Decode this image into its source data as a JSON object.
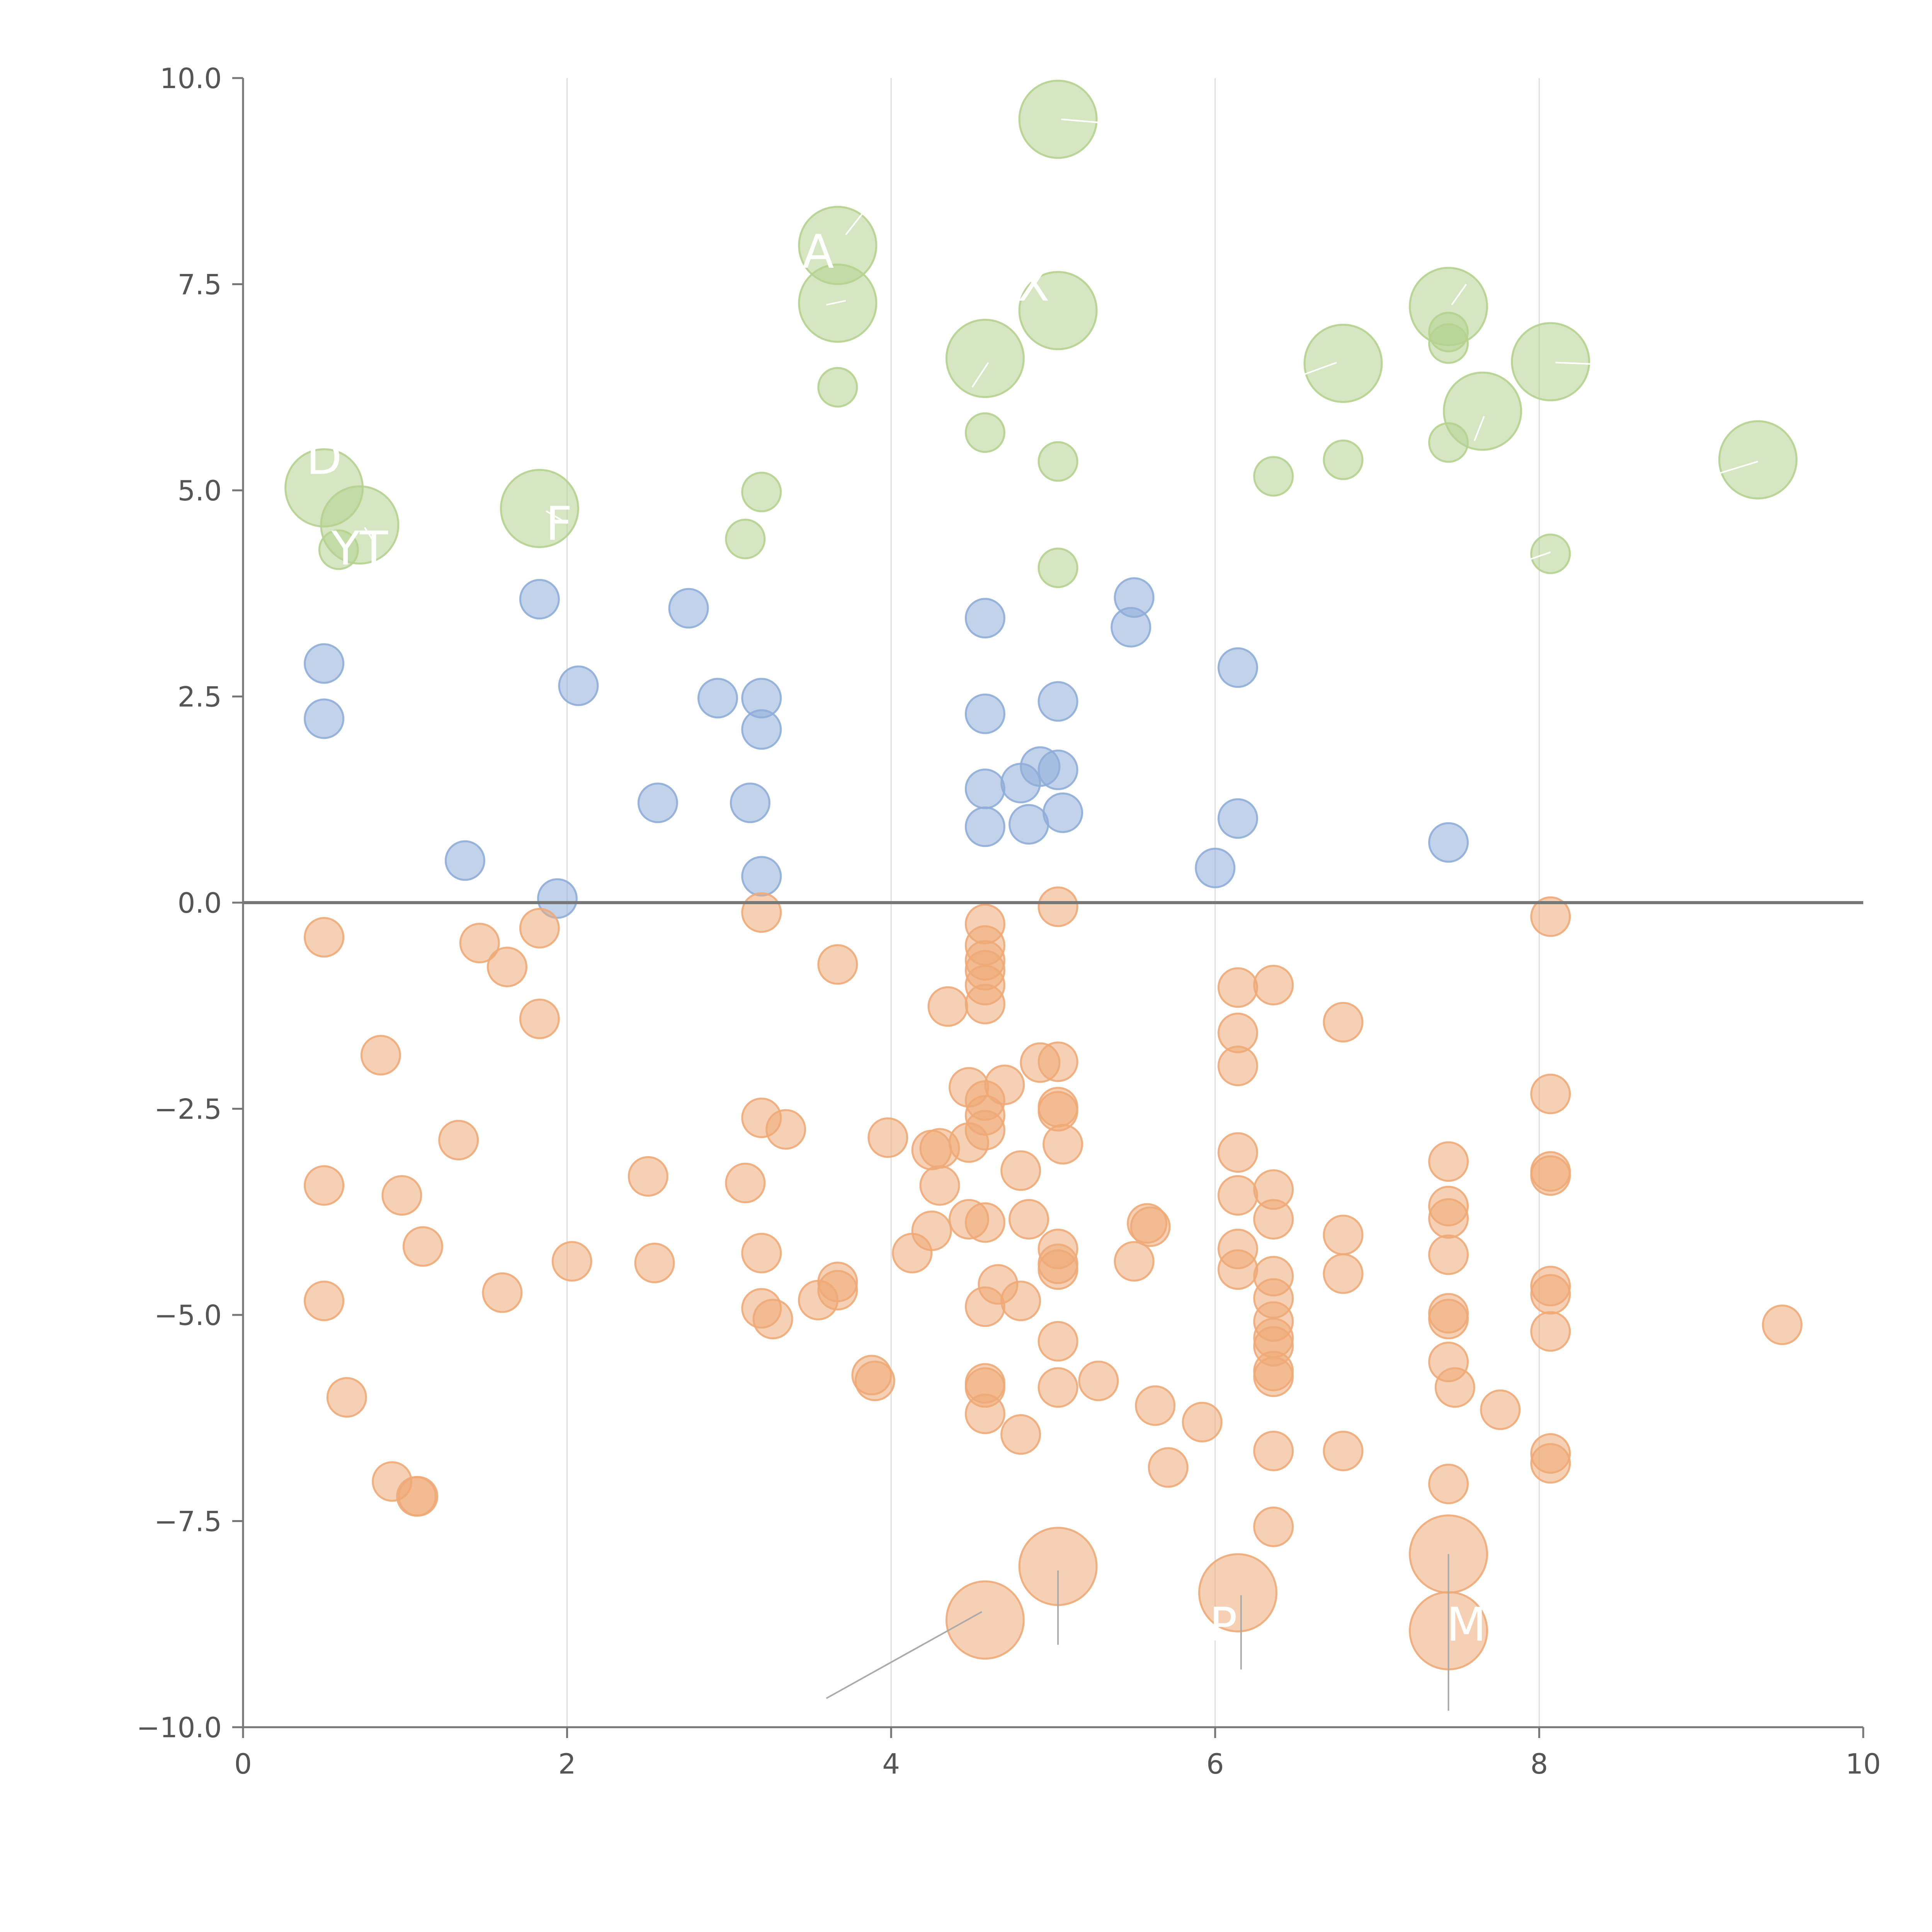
{
  "chart_data": {
    "type": "scatter",
    "title": "",
    "xlabel": "",
    "ylabel": "",
    "xlim": [
      0,
      10
    ],
    "ylim": [
      -10,
      10
    ],
    "x_ticks": [
      0,
      2,
      4,
      6,
      8,
      10
    ],
    "x_tick_labels": [
      "0",
      "2",
      "4",
      "6",
      "8",
      "10"
    ],
    "y_ticks": [
      -10,
      -7.5,
      -5,
      -2.5,
      0,
      2.5,
      5,
      7.5,
      10
    ],
    "y_tick_labels": [
      "−10.0",
      "−7.5",
      "−5.0",
      "−2.5",
      "0.0",
      "2.5",
      "5.0",
      "7.5",
      "10.0"
    ],
    "vertical_grid_at": [
      2,
      4,
      6,
      8
    ],
    "horizontal_reference_line": 0,
    "colors": {
      "green": "#b5d18f",
      "blue": "#8fadd8",
      "orange": "#eeaa77",
      "axis": "#777777",
      "grid": "#dddddd",
      "label": "#ffffff",
      "leader": "#aaaaaa"
    },
    "series": [
      {
        "name": "green",
        "color": "#b5d18f",
        "points": [
          [
            5.03,
            9.5,
            2
          ],
          [
            3.67,
            7.97,
            2
          ],
          [
            3.67,
            7.27,
            2
          ],
          [
            5.03,
            7.18,
            2
          ],
          [
            7.44,
            7.23,
            2
          ],
          [
            7.44,
            6.92,
            1
          ],
          [
            7.44,
            6.78,
            1
          ],
          [
            4.58,
            6.6,
            2
          ],
          [
            6.79,
            6.54,
            2
          ],
          [
            8.07,
            6.56,
            2
          ],
          [
            7.65,
            5.96,
            2
          ],
          [
            3.67,
            6.25,
            1
          ],
          [
            4.58,
            5.7,
            1
          ],
          [
            7.44,
            5.58,
            1
          ],
          [
            9.35,
            5.37,
            2
          ],
          [
            5.03,
            5.35,
            1
          ],
          [
            6.79,
            5.37,
            1
          ],
          [
            6.36,
            5.17,
            1
          ],
          [
            0.5,
            5.03,
            2
          ],
          [
            0.72,
            4.58,
            2
          ],
          [
            0.59,
            4.28,
            1
          ],
          [
            1.83,
            4.78,
            2
          ],
          [
            3.2,
            4.98,
            1
          ],
          [
            3.1,
            4.41,
            1
          ],
          [
            5.03,
            4.06,
            1
          ],
          [
            8.07,
            4.23,
            1
          ]
        ]
      },
      {
        "name": "blue",
        "color": "#8fadd8",
        "points": [
          [
            1.83,
            3.68,
            1
          ],
          [
            2.75,
            3.57,
            1
          ],
          [
            4.58,
            3.45,
            1
          ],
          [
            5.5,
            3.7,
            1
          ],
          [
            5.48,
            3.34,
            1
          ],
          [
            0.5,
            2.9,
            1
          ],
          [
            6.14,
            2.85,
            1
          ],
          [
            2.07,
            2.63,
            1
          ],
          [
            2.93,
            2.48,
            1
          ],
          [
            3.2,
            2.48,
            1
          ],
          [
            5.03,
            2.44,
            1
          ],
          [
            3.2,
            2.1,
            1
          ],
          [
            4.58,
            2.29,
            1
          ],
          [
            0.5,
            2.23,
            1
          ],
          [
            2.56,
            1.21,
            1
          ],
          [
            3.13,
            1.21,
            1
          ],
          [
            4.58,
            1.38,
            1
          ],
          [
            4.8,
            1.45,
            1
          ],
          [
            4.92,
            1.65,
            1
          ],
          [
            5.03,
            1.61,
            1
          ],
          [
            5.06,
            1.09,
            1
          ],
          [
            4.85,
            0.95,
            1
          ],
          [
            4.58,
            0.92,
            1
          ],
          [
            6.14,
            1.02,
            1
          ],
          [
            1.37,
            0.51,
            1
          ],
          [
            6.0,
            0.42,
            1
          ],
          [
            7.44,
            0.73,
            1
          ],
          [
            3.2,
            0.32,
            1
          ],
          [
            1.94,
            0.05,
            1
          ]
        ]
      },
      {
        "name": "orange",
        "color": "#eeaa77",
        "points": [
          [
            5.03,
            -0.05,
            1
          ],
          [
            3.2,
            -0.12,
            1
          ],
          [
            8.07,
            -0.17,
            1
          ],
          [
            4.58,
            -0.26,
            1
          ],
          [
            1.83,
            -0.31,
            1
          ],
          [
            0.5,
            -0.42,
            1
          ],
          [
            1.46,
            -0.49,
            1
          ],
          [
            4.58,
            -0.52,
            1
          ],
          [
            4.58,
            -0.7,
            1
          ],
          [
            3.67,
            -0.75,
            1
          ],
          [
            1.63,
            -0.78,
            1
          ],
          [
            4.58,
            -0.82,
            1
          ],
          [
            6.36,
            -1.0,
            1
          ],
          [
            6.14,
            -1.03,
            1
          ],
          [
            4.58,
            -1.0,
            1
          ],
          [
            4.35,
            -1.26,
            1
          ],
          [
            4.58,
            -1.23,
            1
          ],
          [
            1.83,
            -1.41,
            1
          ],
          [
            6.79,
            -1.45,
            1
          ],
          [
            6.14,
            -1.58,
            1
          ],
          [
            0.85,
            -1.85,
            1
          ],
          [
            4.92,
            -1.94,
            1
          ],
          [
            5.03,
            -1.93,
            1
          ],
          [
            6.14,
            -1.98,
            1
          ],
          [
            4.48,
            -2.24,
            1
          ],
          [
            4.7,
            -2.21,
            1
          ],
          [
            8.07,
            -2.32,
            1
          ],
          [
            4.58,
            -2.4,
            1
          ],
          [
            5.03,
            -2.48,
            1
          ],
          [
            5.03,
            -2.53,
            1
          ],
          [
            4.58,
            -2.58,
            1
          ],
          [
            3.2,
            -2.61,
            1
          ],
          [
            4.58,
            -2.76,
            1
          ],
          [
            3.35,
            -2.75,
            1
          ],
          [
            3.98,
            -2.85,
            1
          ],
          [
            1.33,
            -2.88,
            1
          ],
          [
            4.48,
            -2.91,
            1
          ],
          [
            5.06,
            -2.93,
            1
          ],
          [
            4.25,
            -3.0,
            1
          ],
          [
            4.3,
            -2.98,
            1
          ],
          [
            6.14,
            -3.03,
            1
          ],
          [
            7.44,
            -3.14,
            1
          ],
          [
            4.8,
            -3.25,
            1
          ],
          [
            8.07,
            -3.26,
            1
          ],
          [
            8.07,
            -3.31,
            1
          ],
          [
            2.5,
            -3.32,
            1
          ],
          [
            3.1,
            -3.4,
            1
          ],
          [
            0.5,
            -3.43,
            1
          ],
          [
            4.3,
            -3.43,
            1
          ],
          [
            6.36,
            -3.48,
            1
          ],
          [
            0.98,
            -3.55,
            1
          ],
          [
            6.14,
            -3.55,
            1
          ],
          [
            7.44,
            -3.68,
            1
          ],
          [
            7.44,
            -3.83,
            1
          ],
          [
            4.48,
            -3.84,
            1
          ],
          [
            6.36,
            -3.84,
            1
          ],
          [
            4.85,
            -3.84,
            1
          ],
          [
            4.58,
            -3.88,
            1
          ],
          [
            5.58,
            -3.89,
            1
          ],
          [
            5.6,
            -3.93,
            1
          ],
          [
            4.25,
            -3.98,
            1
          ],
          [
            6.79,
            -4.03,
            1
          ],
          [
            1.11,
            -4.17,
            1
          ],
          [
            5.03,
            -4.2,
            1
          ],
          [
            6.14,
            -4.2,
            1
          ],
          [
            4.13,
            -4.25,
            1
          ],
          [
            3.2,
            -4.25,
            1
          ],
          [
            7.44,
            -4.27,
            1
          ],
          [
            5.5,
            -4.35,
            1
          ],
          [
            2.03,
            -4.35,
            1
          ],
          [
            2.54,
            -4.37,
            1
          ],
          [
            5.03,
            -4.38,
            1
          ],
          [
            5.03,
            -4.45,
            1
          ],
          [
            6.14,
            -4.45,
            1
          ],
          [
            6.79,
            -4.5,
            1
          ],
          [
            6.36,
            -4.53,
            1
          ],
          [
            3.67,
            -4.6,
            1
          ],
          [
            4.66,
            -4.63,
            1
          ],
          [
            8.07,
            -4.65,
            1
          ],
          [
            3.67,
            -4.7,
            1
          ],
          [
            1.6,
            -4.73,
            1
          ],
          [
            8.07,
            -4.75,
            1
          ],
          [
            6.36,
            -4.8,
            1
          ],
          [
            3.55,
            -4.82,
            1
          ],
          [
            4.8,
            -4.83,
            1
          ],
          [
            0.5,
            -4.83,
            1
          ],
          [
            4.58,
            -4.9,
            1
          ],
          [
            3.2,
            -4.92,
            1
          ],
          [
            7.44,
            -4.98,
            1
          ],
          [
            7.44,
            -5.05,
            1
          ],
          [
            3.27,
            -5.05,
            1
          ],
          [
            6.36,
            -5.08,
            1
          ],
          [
            9.5,
            -5.12,
            1
          ],
          [
            8.07,
            -5.2,
            1
          ],
          [
            6.36,
            -5.28,
            1
          ],
          [
            6.36,
            -5.38,
            1
          ],
          [
            5.03,
            -5.32,
            1
          ],
          [
            7.44,
            -5.57,
            1
          ],
          [
            6.36,
            -5.68,
            1
          ],
          [
            3.88,
            -5.73,
            1
          ],
          [
            6.36,
            -5.75,
            1
          ],
          [
            4.58,
            -5.83,
            1
          ],
          [
            3.9,
            -5.8,
            1
          ],
          [
            4.58,
            -5.88,
            1
          ],
          [
            5.28,
            -5.8,
            1
          ],
          [
            5.03,
            -5.88,
            1
          ],
          [
            7.48,
            -5.88,
            1
          ],
          [
            0.64,
            -6.0,
            1
          ],
          [
            5.63,
            -6.1,
            1
          ],
          [
            7.76,
            -6.15,
            1
          ],
          [
            4.58,
            -6.2,
            1
          ],
          [
            5.92,
            -6.3,
            1
          ],
          [
            4.8,
            -6.45,
            1
          ],
          [
            6.36,
            -6.65,
            1
          ],
          [
            6.79,
            -6.65,
            1
          ],
          [
            8.07,
            -6.68,
            1
          ],
          [
            8.07,
            -6.8,
            1
          ],
          [
            5.71,
            -6.85,
            1
          ],
          [
            0.92,
            -7.02,
            1
          ],
          [
            7.44,
            -7.05,
            1
          ],
          [
            1.07,
            -7.2,
            1
          ],
          [
            1.08,
            -7.2,
            1
          ],
          [
            6.36,
            -7.57,
            1
          ],
          [
            7.44,
            -7.9,
            2
          ],
          [
            5.03,
            -8.05,
            2
          ],
          [
            6.14,
            -8.37,
            2
          ],
          [
            4.58,
            -8.7,
            2
          ],
          [
            7.44,
            -8.83,
            2
          ]
        ]
      }
    ],
    "point_labels": [
      {
        "text": "A",
        "x": 3.55,
        "y": 7.7,
        "tx": 3.55,
        "ty": 7.7,
        "px": 3.67,
        "py": 7.27,
        "color": "#ffffff"
      },
      {
        "text": "X",
        "x": 4.88,
        "y": 7.3,
        "tx": 4.88,
        "ty": 7.3,
        "px": 5.03,
        "py": 7.18,
        "color": "#ffffff"
      },
      {
        "text": "D",
        "x": 0.5,
        "y": 5.2,
        "tx": 0.5,
        "ty": 5.2,
        "px": 0.5,
        "py": 5.03,
        "color": "#ffffff"
      },
      {
        "text": "F",
        "x": 1.95,
        "y": 4.4,
        "tx": 1.95,
        "ty": 4.4,
        "px": 1.83,
        "py": 4.78,
        "color": "#ffffff"
      },
      {
        "text": "YT",
        "x": 0.72,
        "y": 4.1,
        "tx": 0.72,
        "ty": 4.1,
        "px": 0.72,
        "py": 4.58,
        "color": "#ffffff"
      },
      {
        "text": "P",
        "x": 6.05,
        "y": -8.95,
        "tx": 6.05,
        "ty": -8.95,
        "px": 6.14,
        "py": -8.37,
        "color": "#ffffff"
      },
      {
        "text": "M",
        "x": 7.55,
        "y": -8.95,
        "tx": 7.55,
        "ty": -8.95,
        "px": 7.44,
        "py": -8.83,
        "color": "#ffffff"
      }
    ],
    "leader_lines": [
      {
        "x1": 4.56,
        "y1": -8.6,
        "x2": 3.6,
        "y2": -9.65,
        "color": "#aaaaaa"
      },
      {
        "x1": 5.03,
        "y1": -8.1,
        "x2": 5.03,
        "y2": -9.0,
        "color": "#aaaaaa"
      },
      {
        "x1": 6.16,
        "y1": -8.4,
        "x2": 6.16,
        "y2": -9.3,
        "color": "#aaaaaa"
      },
      {
        "x1": 7.44,
        "y1": -7.9,
        "x2": 7.44,
        "y2": -9.8,
        "color": "#aaaaaa"
      },
      {
        "x1": 5.05,
        "y1": 9.5,
        "x2": 5.35,
        "y2": 9.45,
        "color": "#ffffff"
      },
      {
        "x1": 3.72,
        "y1": 8.1,
        "x2": 3.82,
        "y2": 8.35,
        "color": "#ffffff"
      },
      {
        "x1": 3.72,
        "y1": 7.3,
        "x2": 3.6,
        "y2": 7.25,
        "color": "#ffffff"
      },
      {
        "x1": 4.6,
        "y1": 6.55,
        "x2": 4.5,
        "y2": 6.25,
        "color": "#ffffff"
      },
      {
        "x1": 6.75,
        "y1": 6.55,
        "x2": 6.4,
        "y2": 6.3,
        "color": "#ffffff"
      },
      {
        "x1": 8.1,
        "y1": 6.55,
        "x2": 8.35,
        "y2": 6.53,
        "color": "#ffffff"
      },
      {
        "x1": 7.66,
        "y1": 5.9,
        "x2": 7.6,
        "y2": 5.6,
        "color": "#ffffff"
      },
      {
        "x1": 9.35,
        "y1": 5.35,
        "x2": 9.1,
        "y2": 5.2,
        "color": "#ffffff"
      },
      {
        "x1": 7.46,
        "y1": 7.25,
        "x2": 7.55,
        "y2": 7.5,
        "color": "#ffffff"
      },
      {
        "x1": 8.07,
        "y1": 4.25,
        "x2": 7.85,
        "y2": 4.1,
        "color": "#ffffff"
      },
      {
        "x1": 1.87,
        "y1": 4.75,
        "x2": 2.0,
        "y2": 4.6,
        "color": "#ffffff"
      },
      {
        "x1": 0.75,
        "y1": 4.55,
        "x2": 0.8,
        "y2": 4.4,
        "color": "#ffffff"
      }
    ]
  }
}
